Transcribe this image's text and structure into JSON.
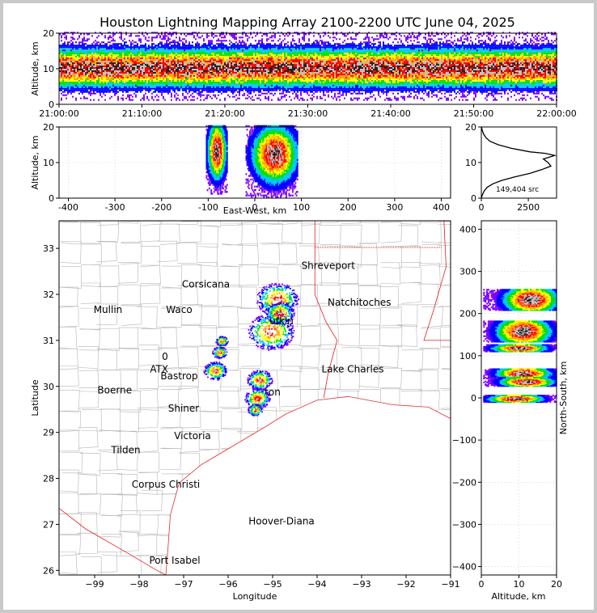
{
  "title": "Houston Lightning Mapping Array 2100-2200 UTC June 04, 2025",
  "colors": {
    "figure_bg": "#ffffff",
    "window_border": "#c9c9c9",
    "density_scale": [
      "#7a00ff",
      "#0000ff",
      "#00c8ff",
      "#00e000",
      "#ffff00",
      "#ffa000",
      "#ff0000",
      "#c0c0c0",
      "#202020"
    ],
    "boundaries": "#e02020",
    "counties": "#b5b5b5"
  },
  "chart_data": [
    {
      "panel": "altitude-time",
      "type": "heatmap",
      "ylabel": "Altitude, km",
      "xlabel": "",
      "ylim": [
        0,
        20
      ],
      "y_ticks": [
        "0",
        "10",
        "20"
      ],
      "x_ticks": [
        "21:00:00",
        "21:10:00",
        "21:20:00",
        "21:30:00",
        "21:40:00",
        "21:50:00",
        "22:00:00"
      ],
      "xlim": [
        "21:00:00",
        "22:00:00"
      ],
      "core_altitude_km": [
        6,
        14
      ],
      "peak_altitude_km": 10
    },
    {
      "panel": "east-west-altitude",
      "type": "heatmap",
      "xlabel": "East-West, km",
      "ylabel": "Altitude, km",
      "xlim": [
        -420,
        420
      ],
      "ylim": [
        0,
        20
      ],
      "x_ticks": [
        "-400",
        "-300",
        "-200",
        "-100",
        "0",
        "100",
        "200",
        "300",
        "400"
      ],
      "y_ticks": [
        "0",
        "10",
        "20"
      ],
      "clusters": [
        {
          "x_range_km": [
            -105,
            -60
          ],
          "z_range_km": [
            1,
            20
          ],
          "peak_x_km": -82,
          "peak_z_km": 13
        },
        {
          "x_range_km": [
            -20,
            90
          ],
          "z_range_km": [
            0,
            20
          ],
          "peak_x_km": 42,
          "peak_z_km": 12
        }
      ]
    },
    {
      "panel": "altitude-histogram",
      "type": "line",
      "xlim": [
        0,
        4000
      ],
      "ylim": [
        0,
        20
      ],
      "x_ticks": [
        "0",
        "2500"
      ],
      "y_ticks": [
        "0",
        "10",
        "20"
      ],
      "annotation": "149,404 src",
      "x": [
        0,
        60,
        150,
        300,
        600,
        1100,
        1800,
        2600,
        3200,
        3700,
        3550,
        3300,
        3900,
        3400,
        2600,
        1600,
        900,
        450,
        250,
        120,
        50,
        10
      ],
      "y": [
        0,
        1,
        2,
        3,
        4,
        5,
        6,
        7,
        8,
        9,
        10,
        11,
        12,
        12.6,
        13,
        14,
        15,
        16,
        17,
        18,
        19,
        20
      ]
    },
    {
      "panel": "plan-view-map",
      "type": "scatter",
      "xlabel": "Longitude",
      "ylabel": "Latitude",
      "xlim": [
        -99.8,
        -91
      ],
      "ylim": [
        25.9,
        33.6
      ],
      "x_ticks": [
        "−99",
        "−98",
        "−97",
        "−96",
        "−95",
        "−94",
        "−93",
        "−92",
        "−91"
      ],
      "y_ticks": [
        "26",
        "27",
        "28",
        "29",
        "30",
        "31",
        "32",
        "33"
      ],
      "cities": [
        {
          "name": "Shreveport",
          "lon": -93.75,
          "lat": 32.55
        },
        {
          "name": "Corsicana",
          "lon": -96.5,
          "lat": 32.15
        },
        {
          "name": "Natchitoches",
          "lon": -93.05,
          "lat": 31.75
        },
        {
          "name": "Mullin",
          "lon": -98.7,
          "lat": 31.6
        },
        {
          "name": "Waco",
          "lon": -97.1,
          "lat": 31.6
        },
        {
          "name": "ufkin",
          "lon": -94.8,
          "lat": 31.35
        },
        {
          "name": "Bastrop",
          "lon": -97.1,
          "lat": 30.15
        },
        {
          "name": "Lake Charles",
          "lon": -93.2,
          "lat": 30.3
        },
        {
          "name": "Boerne",
          "lon": -98.55,
          "lat": 29.85
        },
        {
          "name": "Shiner",
          "lon": -97.0,
          "lat": 29.45
        },
        {
          "name": "Victoria",
          "lon": -96.8,
          "lat": 28.85
        },
        {
          "name": "Tilden",
          "lon": -98.3,
          "lat": 28.55
        },
        {
          "name": "Corpus Christi",
          "lon": -97.4,
          "lat": 27.8
        },
        {
          "name": "Port Isabel",
          "lon": -97.2,
          "lat": 26.15
        }
      ],
      "colored_labels": [
        {
          "text": "ATX",
          "lon": -97.55,
          "lat": 30.3,
          "color": "#ff8c33"
        },
        {
          "text": "Hoover-Diana",
          "lon": -94.8,
          "lat": 27.0,
          "color": "#1a1aff"
        },
        {
          "text": "ton",
          "lon": -95.0,
          "lat": 29.8,
          "color": "#ffb000"
        },
        {
          "text": "0",
          "lon": -97.42,
          "lat": 30.58,
          "color": "#66ff33"
        }
      ],
      "storm_cells": [
        {
          "lon": -94.9,
          "lat": 31.9,
          "size": 1.0
        },
        {
          "lon": -95.05,
          "lat": 31.2,
          "size": 1.1
        },
        {
          "lon": -94.85,
          "lat": 31.6,
          "size": 0.7
        },
        {
          "lon": -95.3,
          "lat": 30.15,
          "size": 0.6
        },
        {
          "lon": -95.35,
          "lat": 29.75,
          "size": 0.6
        },
        {
          "lon": -96.3,
          "lat": 30.35,
          "size": 0.55
        },
        {
          "lon": -96.2,
          "lat": 30.75,
          "size": 0.35
        },
        {
          "lon": -96.15,
          "lat": 31.0,
          "size": 0.3
        },
        {
          "lon": -95.4,
          "lat": 29.5,
          "size": 0.35
        }
      ]
    },
    {
      "panel": "altitude-north-south",
      "type": "heatmap",
      "xlabel": "Altitude, km",
      "ylabel": "North-South, km",
      "xlim": [
        0,
        20
      ],
      "ylim": [
        -420,
        420
      ],
      "x_ticks": [
        "0",
        "10",
        "20"
      ],
      "y_ticks": [
        "−400",
        "−300",
        "−200",
        "−100",
        "0",
        "100",
        "200",
        "300",
        "400"
      ],
      "bands": [
        {
          "y_km": 235,
          "half_width_km": 25,
          "peak_alt_km": 13
        },
        {
          "y_km": 160,
          "half_width_km": 25,
          "peak_alt_km": 11
        },
        {
          "y_km": 120,
          "half_width_km": 8,
          "peak_alt_km": 10
        },
        {
          "y_km": 60,
          "half_width_km": 12,
          "peak_alt_km": 11
        },
        {
          "y_km": 40,
          "half_width_km": 10,
          "peak_alt_km": 12
        },
        {
          "y_km": 0,
          "half_width_km": 8,
          "peak_alt_km": 9
        }
      ]
    }
  ]
}
